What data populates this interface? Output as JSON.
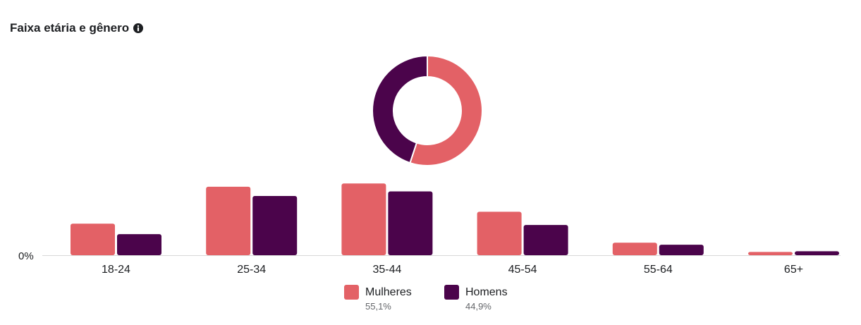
{
  "header": {
    "title": "Faixa etária e gênero",
    "info_icon": "info-icon"
  },
  "colors": {
    "women": "#e36166",
    "men": "#4b044b",
    "baseline": "#d8d8d8"
  },
  "chart_data": [
    {
      "type": "pie",
      "variant": "donut",
      "labels": [
        "Mulheres",
        "Homens"
      ],
      "values": [
        55.1,
        44.9
      ],
      "colors": [
        "#e36166",
        "#4b044b"
      ]
    },
    {
      "type": "bar",
      "categories": [
        "18-24",
        "25-34",
        "35-44",
        "45-54",
        "55-64",
        "65+"
      ],
      "series": [
        {
          "name": "Mulheres",
          "values": [
            4.8,
            10.4,
            10.9,
            6.6,
            1.9,
            0.5
          ]
        },
        {
          "name": "Homens",
          "values": [
            3.2,
            9.0,
            9.7,
            4.6,
            1.6,
            0.6
          ]
        }
      ],
      "ylabel_tick": "0%",
      "ylim": [
        0,
        12
      ],
      "grid": false,
      "legend": "bottom-center"
    }
  ],
  "legend": {
    "items": [
      {
        "label": "Mulheres",
        "pct": "55,1%"
      },
      {
        "label": "Homens",
        "pct": "44,9%"
      }
    ]
  }
}
